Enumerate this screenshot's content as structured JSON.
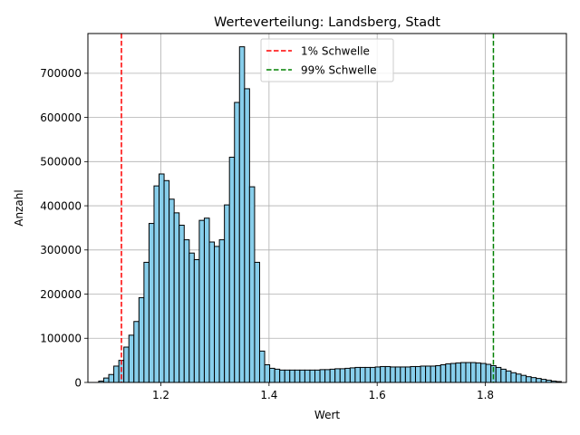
{
  "chart_data": {
    "type": "bar",
    "title": "Werteverteilung: Landsberg, Stadt",
    "xlabel": "Wert",
    "ylabel": "Anzahl",
    "xlim": [
      1.065,
      1.95
    ],
    "ylim": [
      0,
      790000
    ],
    "x_ticks": [
      1.2,
      1.4,
      1.6,
      1.8
    ],
    "x_tick_labels": [
      "1.2",
      "1.4",
      "1.6",
      "1.8"
    ],
    "y_ticks": [
      0,
      100000,
      200000,
      300000,
      400000,
      500000,
      600000,
      700000
    ],
    "y_tick_labels": [
      "0",
      "100000",
      "200000",
      "300000",
      "400000",
      "500000",
      "600000",
      "700000"
    ],
    "grid": true,
    "legend_position": "top-center",
    "bar_color": "#87ceeb",
    "bar_edge_color": "#000000",
    "bin_start": 1.085,
    "bin_width": 0.0093,
    "values": [
      3000,
      10000,
      18000,
      37000,
      50000,
      80000,
      107000,
      138000,
      192000,
      272000,
      360000,
      445000,
      472000,
      457000,
      415000,
      384000,
      356000,
      323000,
      293000,
      278000,
      367000,
      372000,
      318000,
      308000,
      323000,
      402000,
      510000,
      634000,
      760000,
      665000,
      443000,
      272000,
      71000,
      40000,
      32000,
      30000,
      28000,
      28000,
      28000,
      28000,
      28000,
      28000,
      28000,
      28000,
      29000,
      29000,
      30000,
      31000,
      31000,
      32000,
      33000,
      34000,
      34000,
      34000,
      34000,
      35000,
      36000,
      36000,
      35000,
      35000,
      35000,
      35000,
      36000,
      36000,
      37000,
      37000,
      37000,
      38000,
      40000,
      42000,
      43000,
      44000,
      45000,
      45000,
      45000,
      44000,
      43000,
      41000,
      38000,
      34000,
      30000,
      26000,
      22000,
      19000,
      16000,
      13000,
      11000,
      9000,
      7000,
      5000,
      3000,
      2000
    ],
    "reference_lines": [
      {
        "name": "1% Schwelle",
        "x": 1.127,
        "color": "#ff0000",
        "style": "dashed"
      },
      {
        "name": "99% Schwelle",
        "x": 1.815,
        "color": "#008000",
        "style": "dashed"
      }
    ]
  }
}
